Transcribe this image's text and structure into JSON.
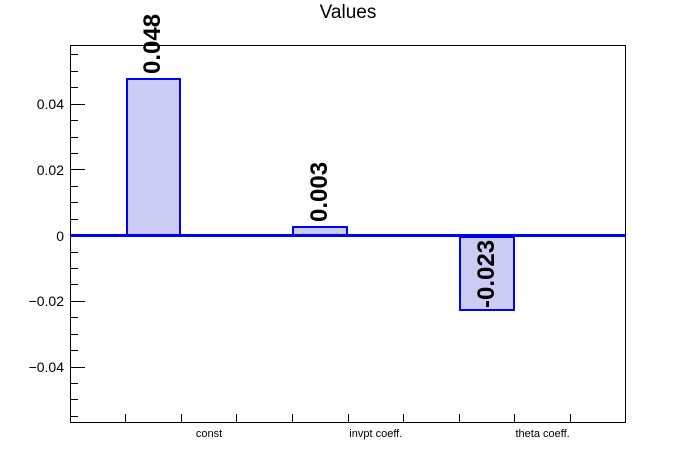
{
  "chart_data": {
    "type": "bar",
    "title": "Values",
    "categories": [
      "const",
      "invpt coeff.",
      "theta coeff."
    ],
    "values": [
      0.048,
      0.003,
      -0.023
    ],
    "bar_value_labels": [
      "0.048",
      "0.003",
      "-0.023"
    ],
    "xlabel": "",
    "ylabel": "",
    "ylim": [
      -0.057,
      0.058
    ],
    "y_major_ticks": [
      -0.04,
      -0.02,
      0,
      0.02,
      0.04
    ],
    "y_tick_labels": [
      "−0.04",
      "−0.02",
      "0",
      "0.02",
      "0.04"
    ],
    "y_minor_step": 0.005,
    "grid": "off",
    "legend": "none",
    "n_bins": 10,
    "bar_bins": [
      2,
      5,
      8
    ],
    "category_label_bins": [
      3,
      6,
      9
    ],
    "colors": {
      "bar_fill": "#cbcbf4",
      "bar_border": "#0202f2",
      "zero_line": "#0202f2",
      "frame": "#000000",
      "text": "#000000",
      "background": "#ffffff"
    }
  }
}
